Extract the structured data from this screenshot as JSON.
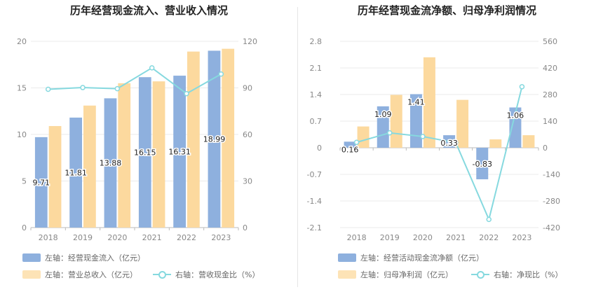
{
  "chart_data": [
    {
      "type": "bar",
      "title": "历年经营现金流入、营业收入情况",
      "categories": [
        "2018",
        "2019",
        "2020",
        "2021",
        "2022",
        "2023"
      ],
      "left_axis": {
        "min": 0,
        "max": 20,
        "ticks": [
          "0",
          "5",
          "10",
          "15",
          "20"
        ]
      },
      "right_axis": {
        "min": 0,
        "max": 120,
        "ticks": [
          "0",
          "30",
          "60",
          "90",
          "120"
        ]
      },
      "series": [
        {
          "name": "左轴：经营现金流入（亿元）",
          "kind": "bar",
          "axis": "left",
          "color": "#8eb0de",
          "values": [
            9.71,
            11.81,
            13.88,
            16.15,
            16.31,
            18.99
          ],
          "labels": [
            "9.71",
            "11.81",
            "13.88",
            "16.15",
            "16.31",
            "18.99"
          ]
        },
        {
          "name": "左轴：营业总收入（亿元）",
          "kind": "bar",
          "axis": "left",
          "color": "#fcd99e",
          "values": [
            10.9,
            13.1,
            15.5,
            15.7,
            18.9,
            19.2
          ]
        },
        {
          "name": "右轴：营收现金比（%）",
          "kind": "line",
          "axis": "right",
          "color": "#86d9df",
          "values": [
            89.1,
            90.2,
            89.5,
            102.9,
            86.3,
            98.9
          ]
        }
      ],
      "legend_rows": [
        [
          "左轴：经营现金流入（亿元）"
        ],
        [
          "左轴：营业总收入（亿元）",
          "右轴：营收现金比（%）"
        ]
      ]
    },
    {
      "type": "bar",
      "title": "历年经营现金流净额、归母净利润情况",
      "categories": [
        "2018",
        "2019",
        "2020",
        "2021",
        "2022",
        "2023"
      ],
      "left_axis": {
        "min": -2.1,
        "max": 2.8,
        "ticks": [
          "-2.1",
          "-1.4",
          "-0.7",
          "0",
          "0.7",
          "1.4",
          "2.1",
          "2.8"
        ]
      },
      "right_axis": {
        "min": -420,
        "max": 560,
        "ticks": [
          "-420",
          "-280",
          "-140",
          "0",
          "140",
          "280",
          "420",
          "560"
        ]
      },
      "series": [
        {
          "name": "左轴：经营活动现金流净额（亿元）",
          "kind": "bar",
          "axis": "left",
          "color": "#8eb0de",
          "values": [
            0.16,
            1.09,
            1.41,
            0.33,
            -0.83,
            1.06
          ],
          "labels": [
            "0.16",
            "1.09",
            "1.41",
            "0.33",
            "-0.83",
            "1.06"
          ]
        },
        {
          "name": "左轴：归母净利润（亿元）",
          "kind": "bar",
          "axis": "left",
          "color": "#fcd99e",
          "values": [
            0.56,
            1.39,
            2.38,
            1.26,
            0.22,
            0.33
          ]
        },
        {
          "name": "右轴：净现比（%）",
          "kind": "line",
          "axis": "right",
          "color": "#86d9df",
          "values": [
            28.6,
            78.4,
            59.2,
            26.2,
            -377.3,
            321.2
          ]
        }
      ],
      "legend_rows": [
        [
          "左轴：经营活动现金流净额（亿元）"
        ],
        [
          "左轴：归母净利润（亿元）",
          "右轴：净现比（%）"
        ]
      ]
    }
  ]
}
